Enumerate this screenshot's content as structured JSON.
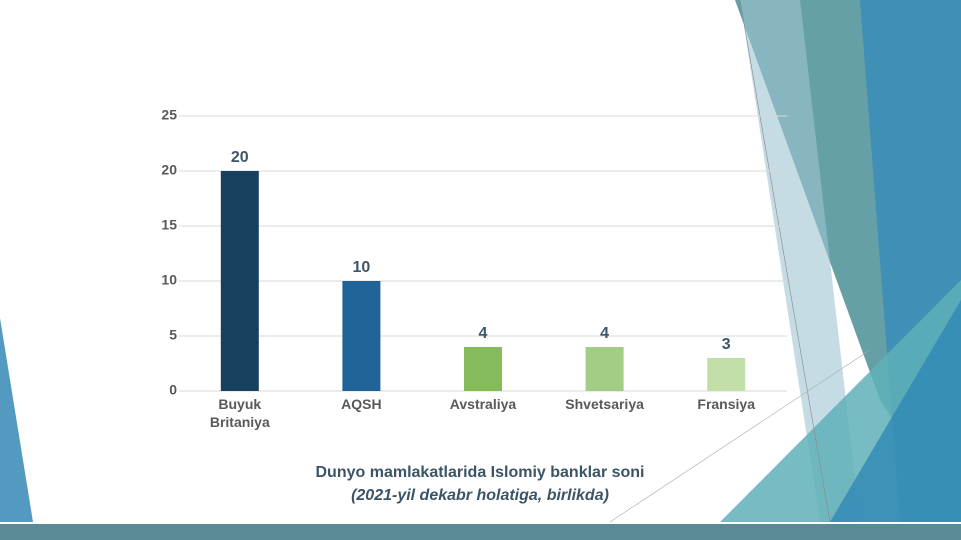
{
  "chart_data": {
    "type": "bar",
    "title": "Dunyo mamlakatlarida Islomiy banklar soni",
    "subtitle": "(2021-yil dekabr holatiga, birlikda)",
    "categories": [
      "Buyuk Britaniya",
      "AQSH",
      "Avstraliya",
      "Shvetsariya",
      "Fransiya"
    ],
    "values": [
      20,
      10,
      4,
      4,
      3
    ],
    "colors": [
      "#17405f",
      "#1f6397",
      "#86bb5b",
      "#a3cc85",
      "#c2dfa9"
    ],
    "ylim": [
      0,
      25
    ],
    "yticks": [
      0,
      5,
      10,
      15,
      20,
      25
    ],
    "grid": true
  }
}
